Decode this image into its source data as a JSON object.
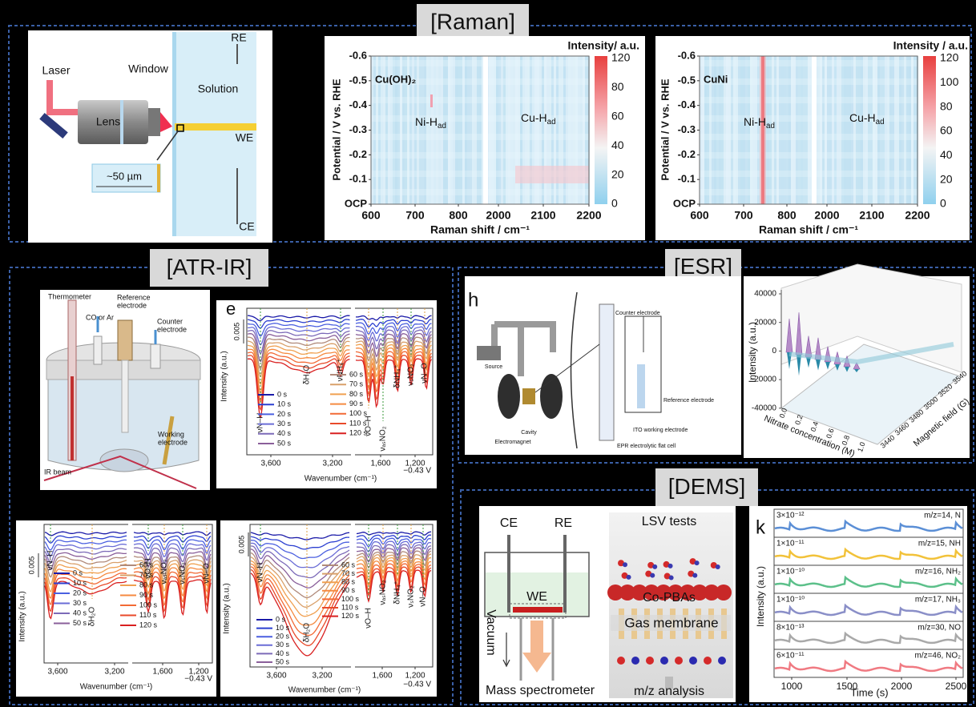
{
  "sections": {
    "raman": "[Raman]",
    "atr_ir": "[ATR-IR]",
    "esr": "[ESR]",
    "dems": "[DEMS]"
  },
  "panel_a": {
    "laser": "Laser",
    "window": "Window",
    "re": "RE",
    "solution": "Solution",
    "lens": "Lens",
    "we": "WE",
    "scale": "~50 µm",
    "ce": "CE"
  },
  "raman_axes": {
    "y_label": "Potential / V vs. RHE",
    "y_ticks": [
      "-0.6",
      "-0.5",
      "-0.4",
      "-0.3",
      "-0.2",
      "-0.1",
      "OCP"
    ],
    "x_label": "Raman shift / cm⁻¹",
    "x_ticks": [
      "600",
      "700",
      "800",
      "2000",
      "2100",
      "2200"
    ]
  },
  "raman_b": {
    "sample": "Cu(OH)₂",
    "colorbar_title": "Intensity/ a.u.",
    "colorbar_ticks": [
      "120",
      "80",
      "60",
      "40",
      "20",
      "0"
    ],
    "peaks": [
      {
        "text": "Ni-H",
        "sub": "ad"
      },
      {
        "text": "Cu-H",
        "sub": "ad"
      }
    ]
  },
  "raman_c": {
    "sample": "CuNi",
    "colorbar_title": "Intensity / a.u.",
    "colorbar_ticks": [
      "120",
      "100",
      "80",
      "60",
      "40",
      "20",
      "0"
    ],
    "peaks": [
      {
        "text": "Ni-H",
        "sub": "ad"
      },
      {
        "text": "Cu-H",
        "sub": "ad"
      }
    ]
  },
  "atr_d": {
    "thermometer": "Thermometer",
    "gas": "CO or Ar",
    "reference": [
      "Reference",
      "electrode"
    ],
    "counter": [
      "Counter",
      "electrode"
    ],
    "working": [
      "Working",
      "electrode"
    ],
    "ir_beam": "IR beam"
  },
  "spectra": {
    "y_label": "Intensity (a.u.)",
    "scale": "0.005",
    "x_label": "Wavenumber (cm⁻¹)",
    "x_ticks": [
      "3,600",
      "3,200",
      "1,600",
      "1,200"
    ],
    "legend": [
      "0 s",
      "10 s",
      "20 s",
      "30 s",
      "40 s",
      "50 s",
      "60 s",
      "70 s",
      "80 s",
      "90 s",
      "100 s",
      "110 s",
      "120 s"
    ],
    "potential": "−0.43 V"
  },
  "panel_e": {
    "letter": "e",
    "peaks": [
      "νN–H",
      "δH₂O",
      "νNH₄⁺",
      "νO–H",
      "νₐₛNO₂",
      "δNH₄⁺",
      "νₛNO₂",
      "νN–O"
    ]
  },
  "panel_f": {
    "peaks": [
      "νN–H",
      "δH₂O",
      "νO–H",
      "νₐₛNO₂",
      "νₛNO₂",
      "νN–O"
    ]
  },
  "panel_g": {
    "peaks": [
      "νN–H",
      "δH₂O",
      "νO–H",
      "νₐₛNO₂",
      "δNH₄⁺",
      "νₛNO₂",
      "νN–O"
    ]
  },
  "esr_h": {
    "letter": "h",
    "source": "Source",
    "electromagnet": "Electromagnet",
    "cavity": "Cavity",
    "counter": "Counter electrode",
    "reference": "Reference electrode",
    "ito": "ITO working electrode",
    "cell": "EPR electrolytic flat cell"
  },
  "esr_3d": {
    "y_label": "Intensity (a.u.)",
    "y_ticks": [
      "40000",
      "20000",
      "0",
      "-20000",
      "-40000"
    ],
    "x_label": "Nitrate concentration (M)",
    "x_ticks": [
      "0.0",
      "0.2",
      "0.4",
      "0.6",
      "0.8",
      "1.0"
    ],
    "z_label": "Magnetic field (G)",
    "z_ticks": [
      "3440",
      "3460",
      "3480",
      "3500",
      "3520",
      "3540"
    ]
  },
  "dems": {
    "ce": "CE",
    "re": "RE",
    "we": "WE",
    "vacuum": "Vacuum",
    "ms": "Mass spectrometer",
    "lsv": "LSV tests",
    "catalyst": "Co-PBAs",
    "membrane": "Gas membrane",
    "analysis": "m/z analysis"
  },
  "panel_k": {
    "letter": "k",
    "traces": [
      {
        "scale": "3×10⁻¹²",
        "label": "m/z=14, N",
        "color": "#5b8fd6"
      },
      {
        "scale": "1×10⁻¹¹",
        "label": "m/z=15, NH",
        "color": "#f2c23a"
      },
      {
        "scale": "1×10⁻¹⁰",
        "label": "m/z=16, NH₂",
        "color": "#5cc08a"
      },
      {
        "scale": "1×10⁻¹⁰",
        "label": "m/z=17, NH₃",
        "color": "#8a8fc8"
      },
      {
        "scale": "8×10⁻¹³",
        "label": "m/z=30, NO",
        "color": "#a9a9a9"
      },
      {
        "scale": "6×10⁻¹¹",
        "label": "m/z=46, NO₂",
        "color": "#f07a82"
      }
    ],
    "x_ticks": [
      "1000",
      "1500",
      "2000",
      "2500"
    ],
    "x_label": "Time (s)",
    "y_label": "Intensity (a.u.)"
  }
}
